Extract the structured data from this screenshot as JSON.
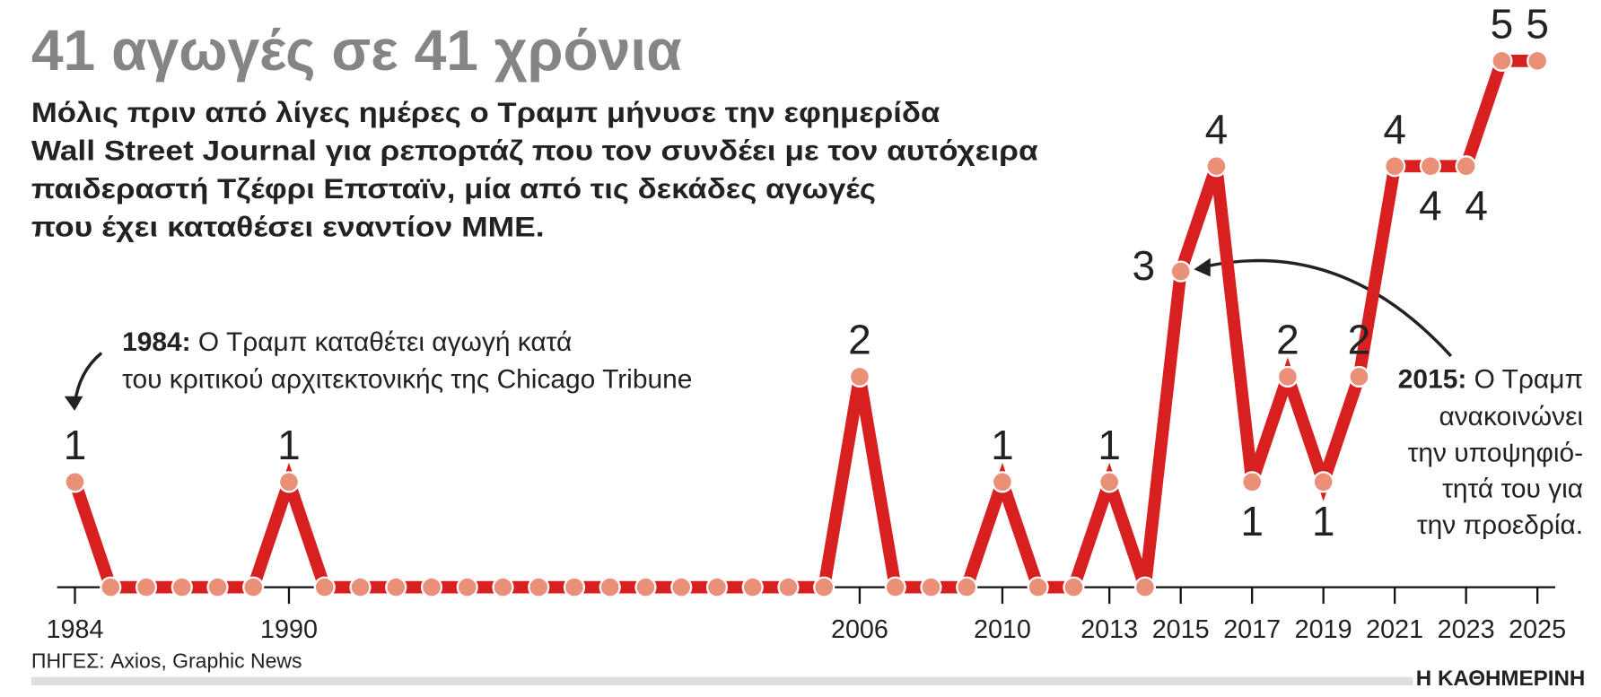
{
  "chart_data": {
    "type": "line",
    "title": "41 αγωγές σε 41 χρόνια",
    "subtitle": [
      "Μόλις πριν από λίγες ημέρες ο Τραμπ μήνυσε την εφημερίδα",
      "Wall Street Journal για ρεπορτάζ που τον συνδέει με τον αυτόχειρα",
      "παιδεραστή Τζέφρι Επσταϊν, μία από τις δεκάδες αγωγές",
      "που έχει καταθέσει εναντίον ΜΜΕ."
    ],
    "annotations": [
      {
        "bold": "1984:",
        "lines": [
          "Ο Τραμπ καταθέτει αγωγή κατά",
          "του κριτικού αρχιτεκτονικής της Chicago Tribune"
        ]
      },
      {
        "bold": "2015:",
        "lines": [
          "Ο Τραμπ",
          "ανακοινώνει",
          "την υποψηφιό-",
          "τητά του για",
          "την προεδρία."
        ]
      }
    ],
    "x": [
      1984,
      1985,
      1986,
      1987,
      1988,
      1989,
      1990,
      1991,
      1992,
      1993,
      1994,
      1995,
      1996,
      1997,
      1998,
      1999,
      2000,
      2001,
      2002,
      2003,
      2004,
      2005,
      2006,
      2007,
      2008,
      2009,
      2010,
      2011,
      2012,
      2013,
      2014,
      2015,
      2016,
      2017,
      2018,
      2019,
      2020,
      2021,
      2022,
      2023,
      2024,
      2025
    ],
    "values": [
      1,
      0,
      0,
      0,
      0,
      0,
      1,
      0,
      0,
      0,
      0,
      0,
      0,
      0,
      0,
      0,
      0,
      0,
      0,
      0,
      0,
      0,
      2,
      0,
      0,
      0,
      1,
      0,
      0,
      1,
      0,
      3,
      4,
      1,
      2,
      1,
      2,
      4,
      4,
      4,
      5,
      5
    ],
    "color": "#d7201f",
    "marker_color": "#ea8f78",
    "xlim": [
      1983.5,
      2025.5
    ],
    "ylim": [
      0,
      5
    ],
    "xticks": [
      1984,
      1990,
      2006,
      2010,
      2013,
      2015,
      2017,
      2019,
      2021,
      2023,
      2025
    ],
    "source": "ΠΗΓΕΣ: Axios, Graphic News",
    "brand": "Η ΚΑΘΗΜΕΡΙΝΗ"
  }
}
